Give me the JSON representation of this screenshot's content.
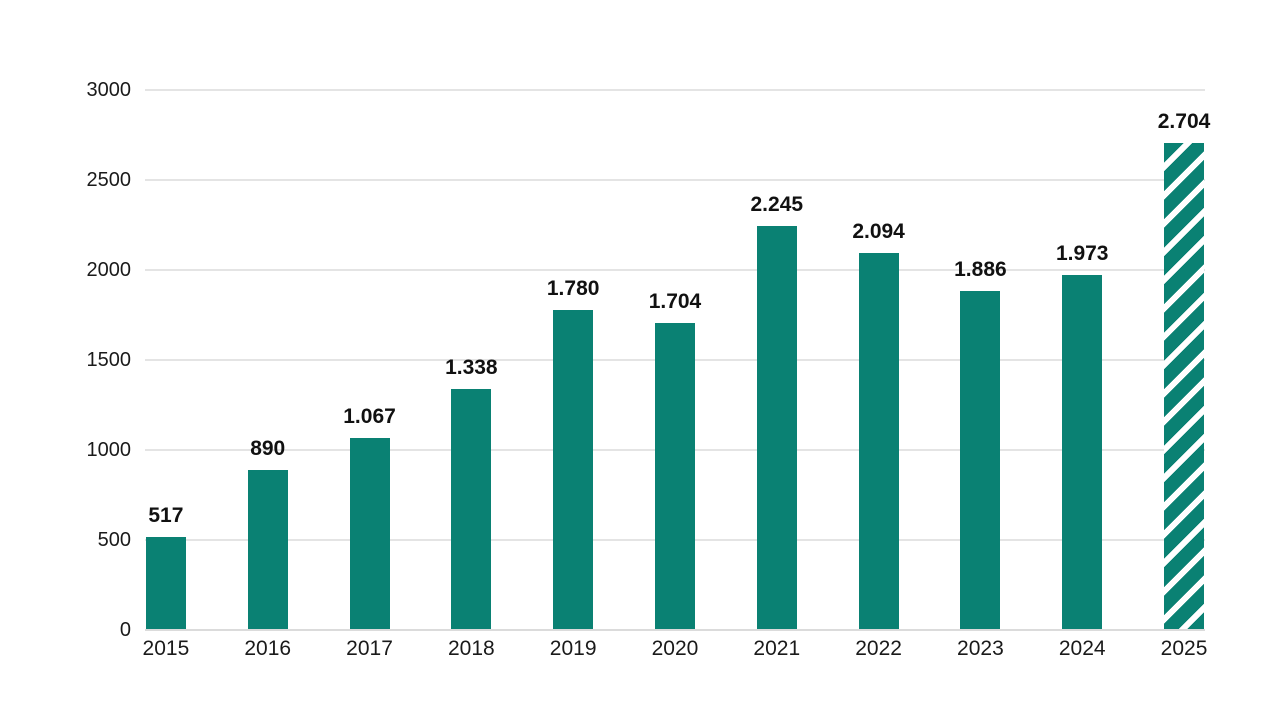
{
  "page": {
    "background": "#ffffff"
  },
  "chart_data": {
    "type": "bar",
    "title": "",
    "xlabel": "",
    "ylabel": "",
    "categories": [
      "2015",
      "2016",
      "2017",
      "2018",
      "2019",
      "2020",
      "2021",
      "2022",
      "2023",
      "2024",
      "2025"
    ],
    "values": [
      517,
      890,
      1067,
      1338,
      1780,
      1704,
      2245,
      2094,
      1886,
      1973,
      2704
    ],
    "value_labels": [
      "517",
      "890",
      "1.067",
      "1.338",
      "1.780",
      "1.704",
      "2.245",
      "2.094",
      "1.886",
      "1.973",
      "2.704"
    ],
    "ylim": [
      0,
      3000
    ],
    "yticks": [
      0,
      500,
      1000,
      1500,
      2000,
      2500,
      3000
    ],
    "ytick_labels": [
      "0",
      "500",
      "1000",
      "1500",
      "2000",
      "2500",
      "3000"
    ],
    "grid": true,
    "legend": false,
    "hatched_category": "2025",
    "colors": {
      "bar": "#0a8173",
      "gridline": "#e4e4e4",
      "axis_line": "#dbdbdb",
      "text": "#1a1a1a"
    }
  }
}
